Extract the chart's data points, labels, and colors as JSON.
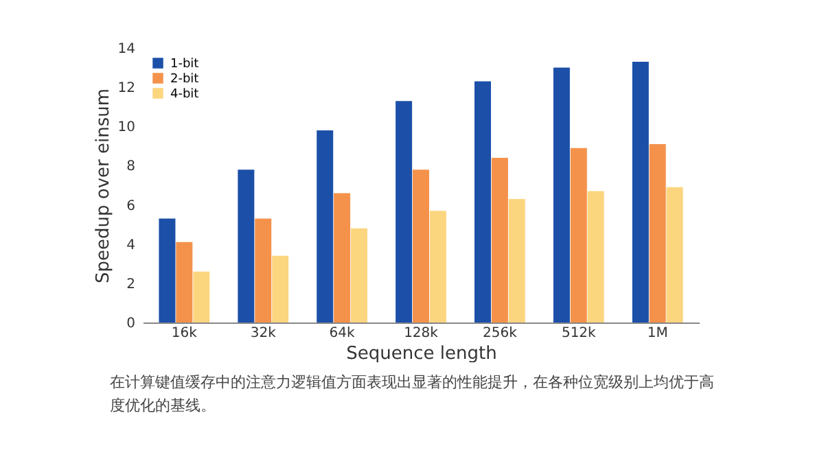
{
  "chart_data": {
    "type": "bar",
    "xlabel": "Sequence length",
    "ylabel": "Speedup over einsum",
    "categories": [
      "16k",
      "32k",
      "64k",
      "128k",
      "256k",
      "512k",
      "1M"
    ],
    "series": [
      {
        "name": "1-bit",
        "color": "#1c50a8",
        "values": [
          5.3,
          7.8,
          9.8,
          11.3,
          12.3,
          13.0,
          13.3
        ]
      },
      {
        "name": "2-bit",
        "color": "#f4924c",
        "values": [
          4.1,
          5.3,
          6.6,
          7.8,
          8.4,
          8.9,
          9.1
        ]
      },
      {
        "name": "4-bit",
        "color": "#fcd57f",
        "values": [
          2.6,
          3.4,
          4.8,
          5.7,
          6.3,
          6.7,
          6.9
        ]
      }
    ],
    "ylim": [
      0,
      14
    ],
    "yticks": [
      0,
      2,
      4,
      6,
      8,
      10,
      12,
      14
    ],
    "grid": false,
    "legend": "top left",
    "annotations": [
      "在计算键值缓存中的注意力逻辑值方面表现出显著的性能提升，在各种位宽级别上均优于高度优化的基线。"
    ]
  }
}
